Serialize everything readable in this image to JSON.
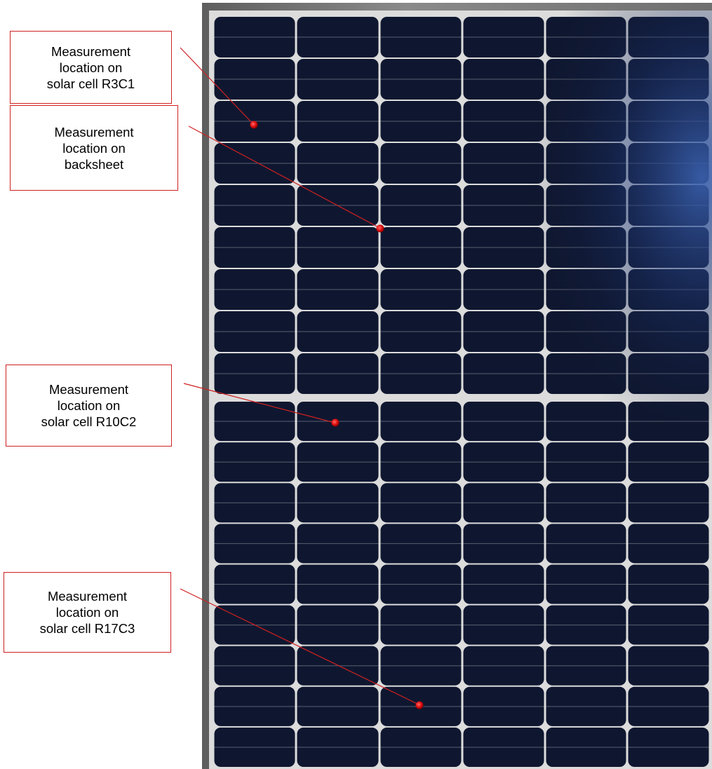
{
  "image": {
    "subject": "solar-module-front",
    "cell_grid": {
      "columns": 6,
      "rows_per_half": 9,
      "halves": 2
    },
    "colors": {
      "frame": "#7a7a7a",
      "cell": "#0f1730",
      "cell_highlight": "#2a4a8c",
      "busbar": "#e6e6e6",
      "annotation": "#d02020",
      "marker": "#e01010"
    }
  },
  "annotations": [
    {
      "id": "r3c1",
      "lines": [
        "Measurement",
        "location on",
        "solar cell R3C1"
      ]
    },
    {
      "id": "backsheet",
      "lines": [
        "Measurement",
        "location on",
        "backsheet"
      ]
    },
    {
      "id": "r10c2",
      "lines": [
        "Measurement",
        "location on",
        "solar cell R10C2"
      ]
    },
    {
      "id": "r17c3",
      "lines": [
        "Measurement",
        "location on",
        "solar cell R17C3"
      ]
    }
  ]
}
